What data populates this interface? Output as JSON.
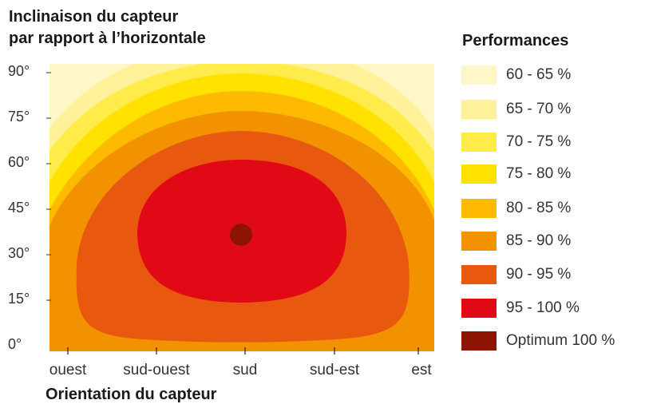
{
  "chart_data": {
    "type": "heatmap",
    "subtype": "filled-contour",
    "title": "Inclinaison du capteur par rapport à l’horizontale",
    "ylabel_lines": [
      "Inclinaison du capteur",
      "par rapport à l’horizontale"
    ],
    "xlabel": "Orientation du capteur",
    "x_categories": [
      "ouest",
      "sud-ouest",
      "sud",
      "sud-est",
      "est"
    ],
    "y_ticks": [
      "90°",
      "75°",
      "60°",
      "45°",
      "30°",
      "15°",
      "0°"
    ],
    "ylim": [
      0,
      90
    ],
    "legend_title": "Performances",
    "legend": [
      {
        "label": "60 - 65 %",
        "color": "#FFF7C8"
      },
      {
        "label": "65 - 70 %",
        "color": "#FFF29A"
      },
      {
        "label": "70 - 75 %",
        "color": "#FFEB4A"
      },
      {
        "label": "75 - 80 %",
        "color": "#FFE200"
      },
      {
        "label": "80 - 85 %",
        "color": "#FDBA00"
      },
      {
        "label": "85 - 90 %",
        "color": "#F39200"
      },
      {
        "label": "90 - 95 %",
        "color": "#E8580E"
      },
      {
        "label": "95 - 100 %",
        "color": "#E20917"
      },
      {
        "label": "Optimum 100 %",
        "color": "#8E1402"
      }
    ],
    "optimum": {
      "orientation": "sud",
      "inclination_deg": 35,
      "performance_pct": 100
    },
    "legend_position": "right",
    "grid": false
  }
}
